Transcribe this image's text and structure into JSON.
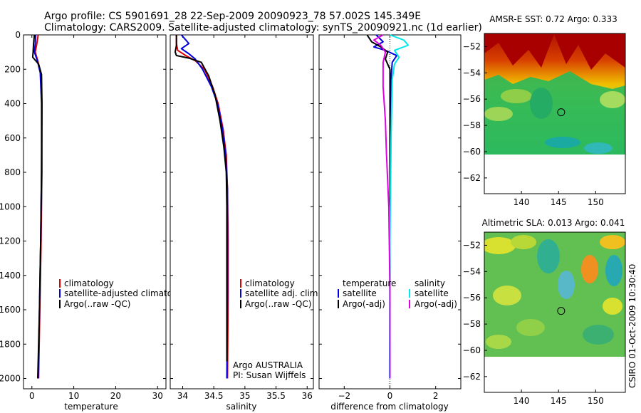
{
  "header": {
    "line1": "Argo profile: CS 5901691_28 22-Sep-2009 20090923_78 57.002S 145.349E",
    "line2": "Climatology: CARS2009. Satellite-adjusted climatology: synTS_20090921.nc (1d earlier)"
  },
  "side_stamp": "CSIRO 01-Oct-2009 10:30:40",
  "colors": {
    "climatology": "#e00000",
    "satellite": "#0000e0",
    "argo": "#000000",
    "satellite_salinity": "#00e8e8",
    "argo_salinity": "#e000e0"
  },
  "chart_data": [
    {
      "type": "line",
      "id": "temperature",
      "xlabel": "temperature",
      "xlim": [
        -2,
        32
      ],
      "ylim": [
        2060,
        0
      ],
      "xticks": [
        0,
        10,
        20,
        30
      ],
      "xtick_labels": [
        "0",
        "10",
        "20",
        "30"
      ],
      "yticks": [
        0,
        200,
        400,
        600,
        800,
        1000,
        1200,
        1400,
        1600,
        1800,
        2000
      ],
      "ytick_labels": [
        "0",
        "200",
        "400",
        "600",
        "800",
        "1000",
        "1200",
        "1400",
        "1600",
        "1800",
        "2000"
      ],
      "legend": {
        "placement": "lower-right",
        "entries": [
          "climatology",
          "satellite-adjusted climatology",
          "Argo(..raw -QC)"
        ]
      },
      "series": [
        {
          "name": "climatology",
          "color_key": "climatology",
          "points": [
            [
              1.5,
              0
            ],
            [
              1.2,
              50
            ],
            [
              0.8,
              100
            ],
            [
              1.4,
              150
            ],
            [
              2.1,
              220
            ],
            [
              2.4,
              400
            ],
            [
              2.4,
              800
            ],
            [
              2.2,
              1200
            ],
            [
              1.9,
              1600
            ],
            [
              1.6,
              2000
            ]
          ]
        },
        {
          "name": "satellite-adjusted climatology",
          "color_key": "satellite",
          "points": [
            [
              0.9,
              0
            ],
            [
              0.8,
              50
            ],
            [
              0.6,
              100
            ],
            [
              1.3,
              150
            ],
            [
              2.0,
              220
            ],
            [
              2.3,
              400
            ],
            [
              2.3,
              800
            ],
            [
              2.1,
              1200
            ],
            [
              1.8,
              1600
            ],
            [
              1.5,
              2000
            ]
          ]
        },
        {
          "name": "Argo(..raw -QC)",
          "color_key": "argo",
          "points": [
            [
              0.6,
              0
            ],
            [
              0.4,
              50
            ],
            [
              0.3,
              100
            ],
            [
              0.2,
              130
            ],
            [
              1.6,
              170
            ],
            [
              2.3,
              230
            ],
            [
              2.4,
              400
            ],
            [
              2.3,
              800
            ],
            [
              2.1,
              1200
            ],
            [
              1.8,
              1600
            ],
            [
              1.4,
              2000
            ]
          ]
        }
      ]
    },
    {
      "type": "line",
      "id": "salinity",
      "xlabel": "salinity",
      "xlim": [
        33.8,
        36.1
      ],
      "ylim": [
        2060,
        0
      ],
      "xticks": [
        34,
        34.5,
        35,
        35.5,
        36
      ],
      "xtick_labels": [
        "34",
        "34.5",
        "35",
        "35.5",
        "36"
      ],
      "legend": {
        "placement": "lower-right",
        "entries": [
          "climatology",
          "satellite adj. clim.",
          "Argo(..raw -QC)"
        ]
      },
      "annotations": [
        "Argo AUSTRALIA",
        "PI: Susan Wijffels"
      ],
      "series": [
        {
          "name": "climatology",
          "color_key": "climatology",
          "points": [
            [
              33.9,
              0
            ],
            [
              33.9,
              50
            ],
            [
              33.92,
              90
            ],
            [
              34.05,
              120
            ],
            [
              34.2,
              150
            ],
            [
              34.35,
              200
            ],
            [
              34.48,
              300
            ],
            [
              34.57,
              400
            ],
            [
              34.65,
              550
            ],
            [
              34.7,
              700
            ],
            [
              34.72,
              900
            ],
            [
              34.73,
              1200
            ],
            [
              34.73,
              1500
            ],
            [
              34.72,
              2000
            ]
          ]
        },
        {
          "name": "satellite adj. clim.",
          "color_key": "satellite",
          "points": [
            [
              33.98,
              0
            ],
            [
              34.1,
              50
            ],
            [
              33.98,
              80
            ],
            [
              34.1,
              110
            ],
            [
              34.2,
              140
            ],
            [
              34.32,
              200
            ],
            [
              34.46,
              300
            ],
            [
              34.56,
              400
            ],
            [
              34.64,
              550
            ],
            [
              34.69,
              700
            ],
            [
              34.72,
              900
            ],
            [
              34.72,
              1200
            ],
            [
              34.72,
              1500
            ],
            [
              34.71,
              2000
            ]
          ]
        },
        {
          "name": "Argo(..raw -QC)",
          "color_key": "argo",
          "points": [
            [
              33.9,
              0
            ],
            [
              33.9,
              60
            ],
            [
              33.88,
              100
            ],
            [
              33.9,
              120
            ],
            [
              34.1,
              135
            ],
            [
              34.3,
              160
            ],
            [
              34.42,
              240
            ],
            [
              34.52,
              350
            ],
            [
              34.6,
              500
            ],
            [
              34.66,
              650
            ],
            [
              34.7,
              800
            ],
            [
              34.71,
              1000
            ],
            [
              34.71,
              1500
            ],
            [
              34.71,
              1900
            ]
          ]
        }
      ]
    },
    {
      "type": "line",
      "id": "difference",
      "xlabel": "difference from climatology",
      "xlim": [
        -3.1,
        3.1
      ],
      "ylim": [
        2060,
        0
      ],
      "xticks": [
        -2,
        0,
        2
      ],
      "xtick_labels": [
        "−2",
        "0",
        "2"
      ],
      "legend": {
        "placement": "lower-center",
        "group1_title": "temperature",
        "group1": [
          "satellite",
          "Argo(-adj)"
        ],
        "group2_title": "salinity",
        "group2": [
          "satellite",
          "Argo(-adj)"
        ]
      },
      "series": [
        {
          "name": "temperature satellite",
          "color_key": "satellite",
          "points": [
            [
              -0.6,
              0
            ],
            [
              -0.3,
              40
            ],
            [
              -0.7,
              70
            ],
            [
              -0.2,
              90
            ],
            [
              0.3,
              120
            ],
            [
              0.1,
              160
            ],
            [
              0.05,
              250
            ],
            [
              0.0,
              600
            ],
            [
              0.0,
              2000
            ]
          ]
        },
        {
          "name": "temperature Argo(-adj)",
          "color_key": "argo",
          "points": [
            [
              -1.0,
              0
            ],
            [
              -0.8,
              40
            ],
            [
              -0.4,
              70
            ],
            [
              -0.1,
              100
            ],
            [
              -0.2,
              140
            ],
            [
              0.0,
              200
            ],
            [
              0.0,
              600
            ],
            [
              0.0,
              2000
            ]
          ]
        },
        {
          "name": "salinity satellite",
          "color_key": "satellite_salinity",
          "points": [
            [
              0.0,
              0
            ],
            [
              0.6,
              30
            ],
            [
              0.8,
              60
            ],
            [
              0.2,
              90
            ],
            [
              0.4,
              130
            ],
            [
              0.2,
              170
            ],
            [
              0.1,
              260
            ],
            [
              0.05,
              600
            ],
            [
              0.0,
              1200
            ],
            [
              -0.02,
              2000
            ]
          ]
        },
        {
          "name": "salinity Argo(-adj)",
          "color_key": "argo_salinity",
          "points": [
            [
              -0.3,
              0
            ],
            [
              -0.7,
              30
            ],
            [
              -0.4,
              60
            ],
            [
              -0.2,
              100
            ],
            [
              -0.3,
              160
            ],
            [
              -0.3,
              300
            ],
            [
              -0.2,
              500
            ],
            [
              -0.15,
              700
            ],
            [
              -0.05,
              1000
            ],
            [
              0.0,
              1500
            ],
            [
              0.0,
              2000
            ]
          ]
        }
      ]
    },
    {
      "type": "heatmap",
      "id": "sst-map",
      "title": "AMSR-E SST: 0.72 Argo: 0.333",
      "xlim": [
        135,
        154
      ],
      "ylim": [
        -63.2,
        -51
      ],
      "xticks": [
        140,
        145,
        150
      ],
      "yticks": [
        -52,
        -54,
        -56,
        -58,
        -60,
        -62
      ],
      "ytick_labels": [
        "−52",
        "−54",
        "−56",
        "−58",
        "−60",
        "−62"
      ],
      "marker": [
        145.35,
        -57.0
      ],
      "data_extent_lat": [
        -60,
        -51
      ]
    },
    {
      "type": "heatmap",
      "id": "sla-map",
      "title": "Altimetric SLA: 0.013 Argo: 0.041",
      "xlim": [
        135,
        154
      ],
      "ylim": [
        -63.2,
        -51
      ],
      "xticks": [
        140,
        145,
        150
      ],
      "yticks": [
        -52,
        -54,
        -56,
        -58,
        -60,
        -62
      ],
      "ytick_labels": [
        "−52",
        "−54",
        "−56",
        "−58",
        "−60",
        "−62"
      ],
      "marker": [
        145.35,
        -57.0
      ],
      "data_extent_lat": [
        -60,
        -51
      ]
    }
  ]
}
